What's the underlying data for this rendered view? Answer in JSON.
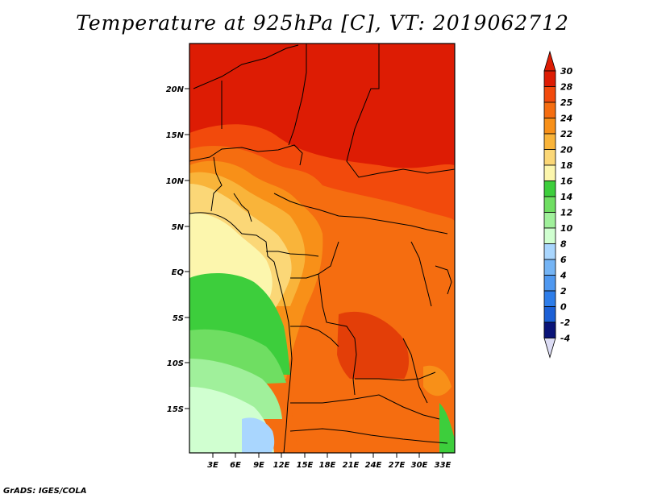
{
  "title": "Temperature at 925hPa [C], VT: 2019062712",
  "credit": "GrADS: IGES/COLA",
  "map": {
    "lon_range": [
      0,
      34.5
    ],
    "lat_range": [
      -19.5,
      24.5
    ],
    "lat_labels": [
      "20N",
      "15N",
      "10N",
      "5N",
      "EQ",
      "5S",
      "10S",
      "15S"
    ],
    "lon_labels": [
      "3E",
      "6E",
      "9E",
      "12E",
      "15E",
      "18E",
      "21E",
      "24E",
      "27E",
      "30E",
      "33E"
    ]
  },
  "colorbar": {
    "labels": [
      "30",
      "28",
      "25",
      "24",
      "22",
      "20",
      "18",
      "16",
      "14",
      "12",
      "10",
      "8",
      "6",
      "4",
      "2",
      "0",
      "-2",
      "-4"
    ],
    "colors": [
      "#dd1c04",
      "#f24a0c",
      "#f56d10",
      "#f89018",
      "#f9b43a",
      "#fbd777",
      "#fcf6ad",
      "#3dce3c",
      "#6fde62",
      "#a0f09b",
      "#d0ffd0",
      "#a9d6fe",
      "#74b4f5",
      "#4f98f0",
      "#2e7de9",
      "#1c60d6",
      "#0f3db6",
      "#0a1478"
    ],
    "top_arrow_color": "#dd1c04",
    "bottom_arrow_color": "#dcdcf4"
  }
}
